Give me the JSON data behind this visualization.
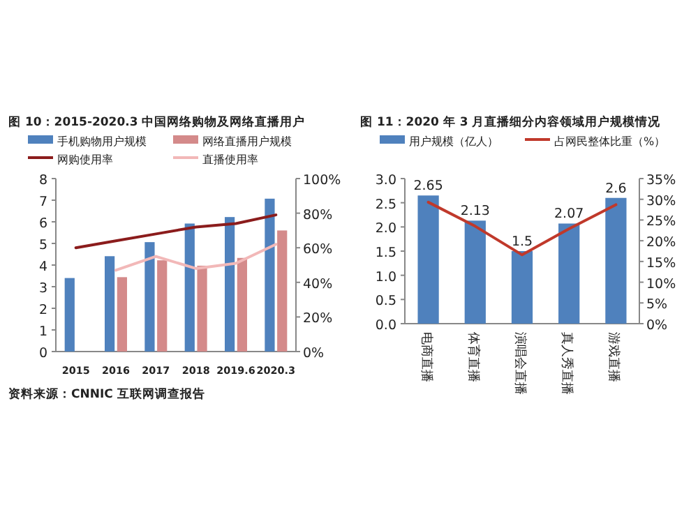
{
  "chart_data": [
    {
      "type": "bar",
      "title": "图 10：2015-2020.3 中国网络购物及网络直播用户",
      "categories": [
        "2015",
        "2016",
        "2017",
        "2018",
        "2019.6",
        "2020.3"
      ],
      "series": [
        {
          "name": "手机购物用户规模",
          "color": "#4f81bd",
          "values": [
            3.4,
            4.41,
            5.06,
            5.92,
            6.22,
            7.07
          ]
        },
        {
          "name": "网络直播用户规模",
          "color": "#d48a8a",
          "values": [
            null,
            3.44,
            4.22,
            3.97,
            4.33,
            5.6
          ]
        },
        {
          "name": "网购使用率",
          "type": "line",
          "axis": "y2",
          "color": "#8b1c1c",
          "values": [
            60,
            64,
            68,
            72,
            74,
            79
          ]
        },
        {
          "name": "直播使用率",
          "type": "line",
          "axis": "y2",
          "color": "#f2b8b8",
          "values": [
            null,
            47,
            55,
            48,
            51,
            62
          ]
        }
      ],
      "ylim": [
        0,
        8
      ],
      "yticks": [
        0,
        1,
        2,
        3,
        4,
        5,
        6,
        7,
        8
      ],
      "y2lim": [
        0,
        100
      ],
      "y2ticks": [
        {
          "value": 0,
          "label": "0%"
        },
        {
          "value": 20,
          "label": "20%"
        },
        {
          "value": 40,
          "label": "40%"
        },
        {
          "value": 60,
          "label": "60%"
        },
        {
          "value": 80,
          "label": "80%"
        },
        {
          "value": 100,
          "label": "100%"
        }
      ],
      "legend": "top",
      "annotations": [
        "资料来源：CNNIC 互联网调查报告"
      ]
    },
    {
      "type": "bar",
      "title": "图 11：2020 年 3 月直播细分内容领域用户规模情况",
      "categories": [
        "电商直播",
        "体育直播",
        "演唱会直播",
        "真人秀直播",
        "游戏直播"
      ],
      "series": [
        {
          "name": "用户规模（亿人）",
          "color": "#4f81bd",
          "values": [
            2.65,
            2.13,
            1.5,
            2.07,
            2.6
          ],
          "value_labels": [
            "2.65",
            "2.13",
            "1.5",
            "2.07",
            "2.6"
          ]
        },
        {
          "name": "占网民整体比重（%）",
          "type": "line",
          "axis": "y2",
          "color": "#c0392b",
          "values": [
            29.3,
            23.5,
            16.6,
            22.9,
            28.7
          ]
        }
      ],
      "ylim": [
        0,
        3
      ],
      "yticks": [
        {
          "value": 0,
          "label": "0.0"
        },
        {
          "value": 0.5,
          "label": "0.5"
        },
        {
          "value": 1,
          "label": "1.0"
        },
        {
          "value": 1.5,
          "label": "1.5"
        },
        {
          "value": 2,
          "label": "2.0"
        },
        {
          "value": 2.5,
          "label": "2.5"
        },
        {
          "value": 3,
          "label": "3.0"
        }
      ],
      "y2lim": [
        0,
        35
      ],
      "y2ticks": [
        {
          "value": 0,
          "label": "0%"
        },
        {
          "value": 5,
          "label": "5%"
        },
        {
          "value": 10,
          "label": "10%"
        },
        {
          "value": 15,
          "label": "15%"
        },
        {
          "value": 20,
          "label": "20%"
        },
        {
          "value": 25,
          "label": "25%"
        },
        {
          "value": 30,
          "label": "30%"
        },
        {
          "value": 35,
          "label": "35%"
        }
      ],
      "legend": "top"
    }
  ]
}
